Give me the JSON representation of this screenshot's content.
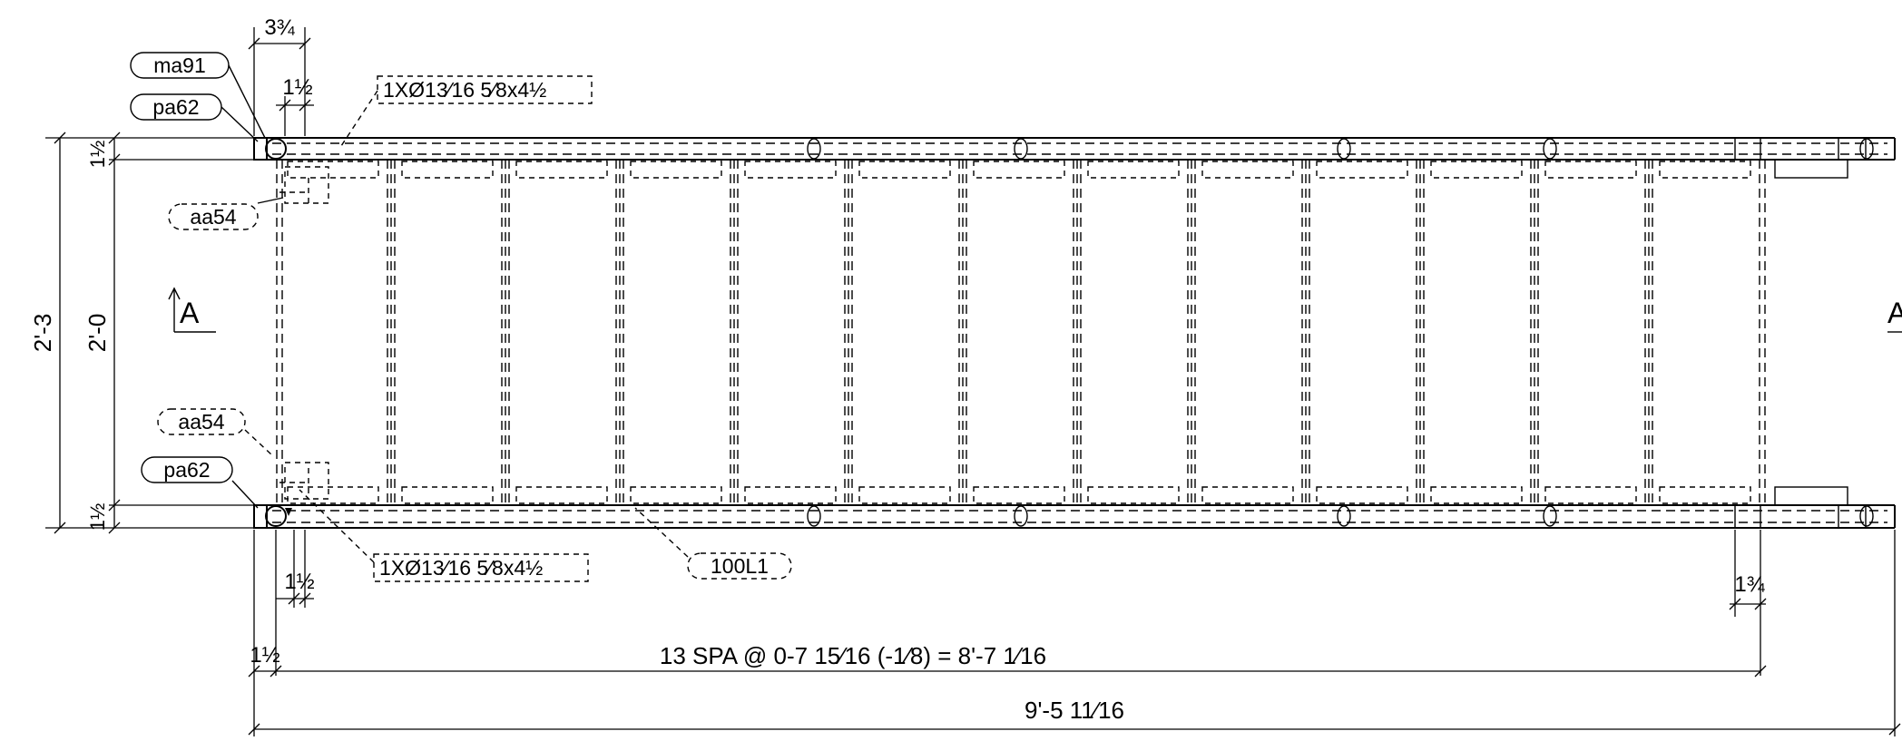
{
  "dimensions": {
    "top_three_quarter": "3¾",
    "top_inch_half": "1½",
    "left_half_top": "1½",
    "left_half_bottom": "1½",
    "overall_height": "2'-3",
    "inner_height": "2'-0",
    "bottom_inch_half": "1½",
    "right_three_quarter": "1¾",
    "spacing_left": "1½",
    "spacing": "13 SPA @ 0-7 15⁄16 (-1⁄8) = 8'-7 1⁄16",
    "overall_length": "9'-5 11⁄16"
  },
  "tags": {
    "ma91": "ma91",
    "pa62_top": "pa62",
    "aa54_top": "aa54",
    "aa54_bottom": "aa54",
    "pa62_bottom": "pa62",
    "part_100L1": "100L1"
  },
  "bolt_callouts": {
    "top": "1XØ13⁄16 5⁄8x4½",
    "bottom": "1XØ13⁄16 5⁄8x4½"
  },
  "section_marks": {
    "left": "A",
    "right": "A"
  }
}
